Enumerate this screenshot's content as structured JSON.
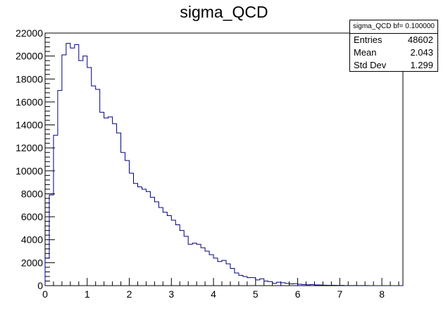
{
  "chart_data": {
    "type": "histogram",
    "title": "sigma_QCD",
    "xlabel": "",
    "ylabel": "",
    "xlim": [
      0,
      8.5
    ],
    "ylim": [
      0,
      22000
    ],
    "bin_width": 0.1,
    "x_ticks": [
      0,
      1,
      2,
      3,
      4,
      5,
      6,
      7,
      8
    ],
    "y_ticks": [
      0,
      2000,
      4000,
      6000,
      8000,
      10000,
      12000,
      14000,
      16000,
      18000,
      20000,
      22000
    ],
    "line_color": "#000080",
    "values": [
      2400,
      7900,
      13100,
      17000,
      20100,
      21100,
      20700,
      21000,
      19600,
      20000,
      19000,
      17400,
      17100,
      15100,
      14600,
      14700,
      14100,
      13300,
      11600,
      10900,
      9800,
      8900,
      8600,
      8400,
      8200,
      7700,
      7300,
      6800,
      6400,
      6100,
      5700,
      5300,
      4800,
      4300,
      3600,
      3700,
      3600,
      3300,
      3000,
      2700,
      2400,
      2100,
      2200,
      1900,
      1500,
      1100,
      900,
      800,
      700,
      700,
      500,
      600,
      400,
      350,
      200,
      300,
      250,
      200,
      150,
      180,
      120,
      100,
      80,
      100,
      60,
      50,
      40,
      30,
      30,
      20,
      20,
      10,
      10,
      10,
      5,
      5,
      5,
      0,
      0,
      0,
      0,
      0,
      0,
      0,
      0
    ]
  },
  "stats": {
    "header": "sigma_QCD bf= 0.100000",
    "rows": [
      {
        "label": "Entries",
        "value": "48602"
      },
      {
        "label": "Mean",
        "value": "2.043"
      },
      {
        "label": "Std Dev",
        "value": "1.299"
      }
    ]
  }
}
